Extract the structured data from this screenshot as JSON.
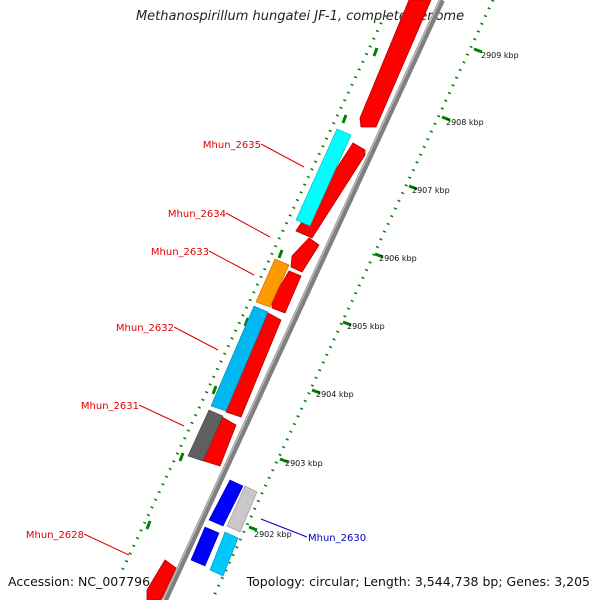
{
  "title": "Methanospirillum hungatei JF-1, complete genome",
  "footer": {
    "accession": "Accession: NC_007796",
    "topology": "Topology: circular; Length: 3,544,738 bp; Genes: 3,205"
  },
  "scale": {
    "ticks": [
      "2909 kbp",
      "2908 kbp",
      "2907 kbp",
      "2906 kbp",
      "2905 kbp",
      "2904 kbp",
      "2903 kbp",
      "2902 kbp"
    ]
  },
  "genes": {
    "mhun_2635": "Mhun_2635",
    "mhun_2634": "Mhun_2634",
    "mhun_2633": "Mhun_2633",
    "mhun_2632": "Mhun_2632",
    "mhun_2631": "Mhun_2631",
    "mhun_2628": "Mhun_2628",
    "mhun_2630": "Mhun_2630"
  },
  "colors": {
    "forward_cds": "#ff0000",
    "label_red": "#e00000",
    "label_blue": "#0000c0",
    "cyan": "#00ffff",
    "sky": "#00b8f0",
    "orange": "#ff9900",
    "gray": "#606060",
    "blue": "#0000ff",
    "lightgray": "#c8c8c8",
    "backbone": "#808080",
    "tick_green": "#008000"
  }
}
